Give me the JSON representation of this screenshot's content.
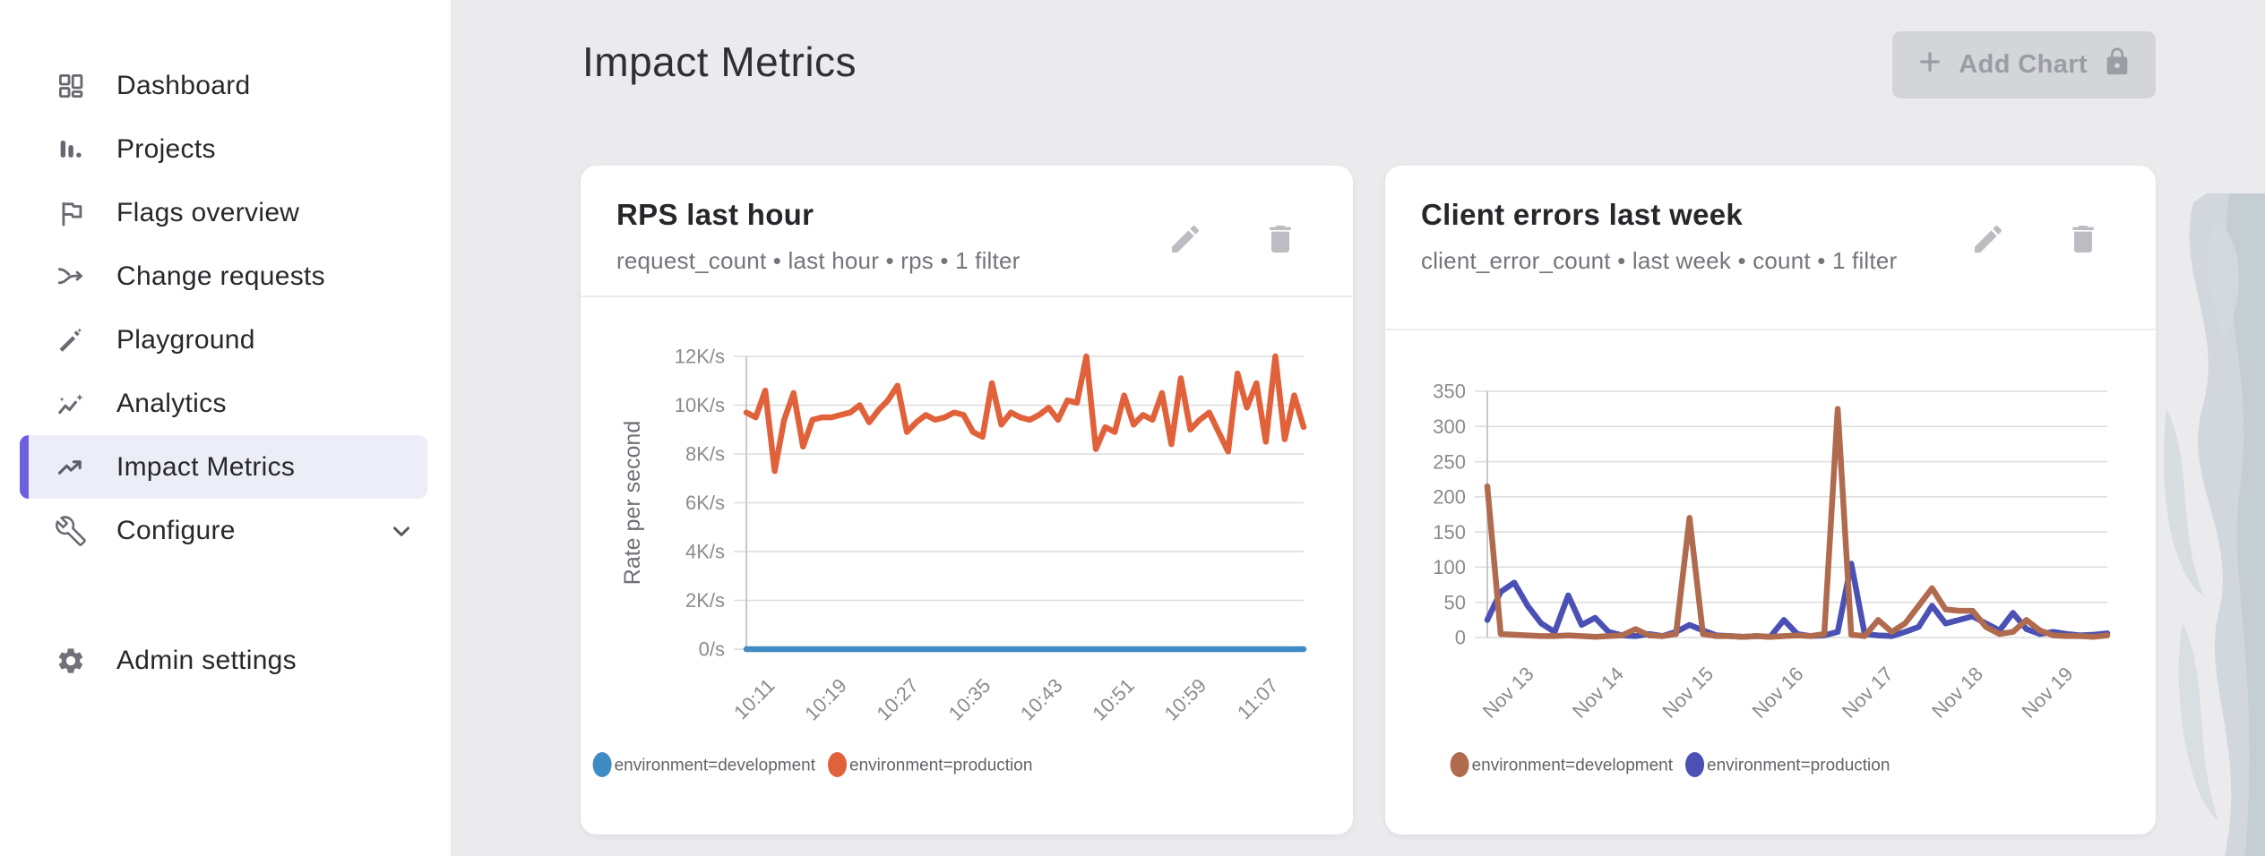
{
  "theme": {
    "sidebar_bg": "#ffffff",
    "main_bg": "#ebebee",
    "accent_purple": "#6c5fe0",
    "active_item_bg": "#ededf8",
    "card_bg": "#ffffff",
    "disabled_button_bg": "#d4d5d9",
    "disabled_button_text": "#9b9ca4",
    "grid_line": "#dcdcdf",
    "axis_line": "#c9c9cd",
    "watermark": "#ccd4d8"
  },
  "sidebar": {
    "items": [
      {
        "label": "Dashboard",
        "icon": "dashboard-icon",
        "active": false
      },
      {
        "label": "Projects",
        "icon": "projects-icon",
        "active": false
      },
      {
        "label": "Flags overview",
        "icon": "flag-icon",
        "active": false
      },
      {
        "label": "Change requests",
        "icon": "change-requests-icon",
        "active": false
      },
      {
        "label": "Playground",
        "icon": "playground-icon",
        "active": false
      },
      {
        "label": "Analytics",
        "icon": "analytics-icon",
        "active": false
      },
      {
        "label": "Impact Metrics",
        "icon": "impact-metrics-icon",
        "active": true
      },
      {
        "label": "Configure",
        "icon": "configure-icon",
        "active": false,
        "expandable": true
      }
    ],
    "footer_items": [
      {
        "label": "Admin settings",
        "icon": "admin-settings-icon",
        "active": false
      }
    ]
  },
  "header": {
    "title": "Impact Metrics"
  },
  "add_chart_button": {
    "label": "Add Chart",
    "disabled": true,
    "icons": [
      "plus-icon",
      "lock-icon"
    ]
  },
  "chart_data": [
    {
      "type": "line",
      "title": "RPS last hour",
      "subtitle": "request_count • last hour • rps • 1 filter",
      "xlabel": "",
      "ylabel": "Rate per second",
      "unit": "K requests per second",
      "grid": "horizontal",
      "legend_position": "bottom",
      "ylim": [
        0,
        12
      ],
      "xlim": [
        8.5,
        70.5
      ],
      "yticks": [
        {
          "v": 0,
          "label": "0/s"
        },
        {
          "v": 2,
          "label": "2K/s"
        },
        {
          "v": 4,
          "label": "4K/s"
        },
        {
          "v": 6,
          "label": "6K/s"
        },
        {
          "v": 8,
          "label": "8K/s"
        },
        {
          "v": 10,
          "label": "10K/s"
        },
        {
          "v": 12,
          "label": "12K/s"
        }
      ],
      "xticks": [
        {
          "v": 11,
          "label": "10:11"
        },
        {
          "v": 19,
          "label": "10:19"
        },
        {
          "v": 27,
          "label": "10:27"
        },
        {
          "v": 35,
          "label": "10:35"
        },
        {
          "v": 43,
          "label": "10:43"
        },
        {
          "v": 51,
          "label": "10:51"
        },
        {
          "v": 59,
          "label": "10:59"
        },
        {
          "v": 67,
          "label": "11:07"
        }
      ],
      "series": [
        {
          "name": "environment=development",
          "color": "#3f8bc3",
          "values": [
            0,
            0,
            0,
            0,
            0,
            0,
            0,
            0,
            0,
            0,
            0,
            0,
            0,
            0,
            0,
            0,
            0,
            0,
            0,
            0,
            0,
            0,
            0,
            0,
            0,
            0,
            0,
            0,
            0,
            0,
            0,
            0,
            0,
            0,
            0,
            0,
            0,
            0,
            0,
            0,
            0,
            0,
            0,
            0,
            0,
            0,
            0,
            0,
            0,
            0,
            0,
            0,
            0,
            0,
            0,
            0,
            0,
            0,
            0,
            0
          ]
        },
        {
          "name": "environment=production",
          "color": "#e0613a",
          "values": [
            9.7,
            9.5,
            10.6,
            7.3,
            9.4,
            10.5,
            8.3,
            9.4,
            9.5,
            9.5,
            9.6,
            9.7,
            10.0,
            9.3,
            9.8,
            10.2,
            10.8,
            8.9,
            9.3,
            9.6,
            9.4,
            9.5,
            9.7,
            9.6,
            8.9,
            8.7,
            10.9,
            9.2,
            9.7,
            9.5,
            9.4,
            9.6,
            9.9,
            9.4,
            10.2,
            10.1,
            12.0,
            8.2,
            9.1,
            8.9,
            10.4,
            9.2,
            9.6,
            9.4,
            10.5,
            8.4,
            11.1,
            9.0,
            9.4,
            9.7,
            8.9,
            8.1,
            11.3,
            9.9,
            10.9,
            8.5,
            12.0,
            8.6,
            10.4,
            9.1
          ]
        }
      ]
    },
    {
      "type": "line",
      "title": "Client errors last week",
      "subtitle": "client_error_count • last week • count • 1 filter",
      "xlabel": "",
      "ylabel": "",
      "unit": "count",
      "grid": "horizontal",
      "legend_position": "bottom",
      "ylim": [
        0,
        350
      ],
      "xlim": [
        12.55,
        19.45
      ],
      "yticks": [
        {
          "v": 0,
          "label": "0"
        },
        {
          "v": 50,
          "label": "50"
        },
        {
          "v": 100,
          "label": "100"
        },
        {
          "v": 150,
          "label": "150"
        },
        {
          "v": 200,
          "label": "200"
        },
        {
          "v": 250,
          "label": "250"
        },
        {
          "v": 300,
          "label": "300"
        },
        {
          "v": 350,
          "label": "350"
        }
      ],
      "xticks": [
        {
          "v": 13,
          "label": "Nov 13"
        },
        {
          "v": 14,
          "label": "Nov 14"
        },
        {
          "v": 15,
          "label": "Nov 15"
        },
        {
          "v": 16,
          "label": "Nov 16"
        },
        {
          "v": 17,
          "label": "Nov 17"
        },
        {
          "v": 18,
          "label": "Nov 18"
        },
        {
          "v": 19,
          "label": "Nov 19"
        }
      ],
      "series": [
        {
          "name": "environment=development",
          "color": "#b06b4f",
          "values": [
            215,
            5,
            4,
            3,
            2,
            2,
            3,
            2,
            1,
            2,
            3,
            12,
            3,
            2,
            5,
            170,
            5,
            2,
            2,
            1,
            2,
            1,
            2,
            3,
            2,
            5,
            325,
            4,
            2,
            25,
            8,
            20,
            45,
            70,
            40,
            38,
            38,
            15,
            5,
            8,
            25,
            10,
            3,
            2,
            2,
            1,
            3
          ]
        },
        {
          "name": "environment=production",
          "color": "#4a50b4",
          "values": [
            25,
            65,
            78,
            45,
            20,
            8,
            60,
            18,
            28,
            8,
            3,
            2,
            5,
            2,
            8,
            18,
            10,
            3,
            2,
            1,
            2,
            1,
            25,
            5,
            2,
            3,
            8,
            105,
            5,
            3,
            2,
            8,
            15,
            45,
            20,
            25,
            30,
            20,
            10,
            35,
            12,
            5,
            8,
            5,
            3,
            4,
            6
          ]
        }
      ]
    }
  ]
}
